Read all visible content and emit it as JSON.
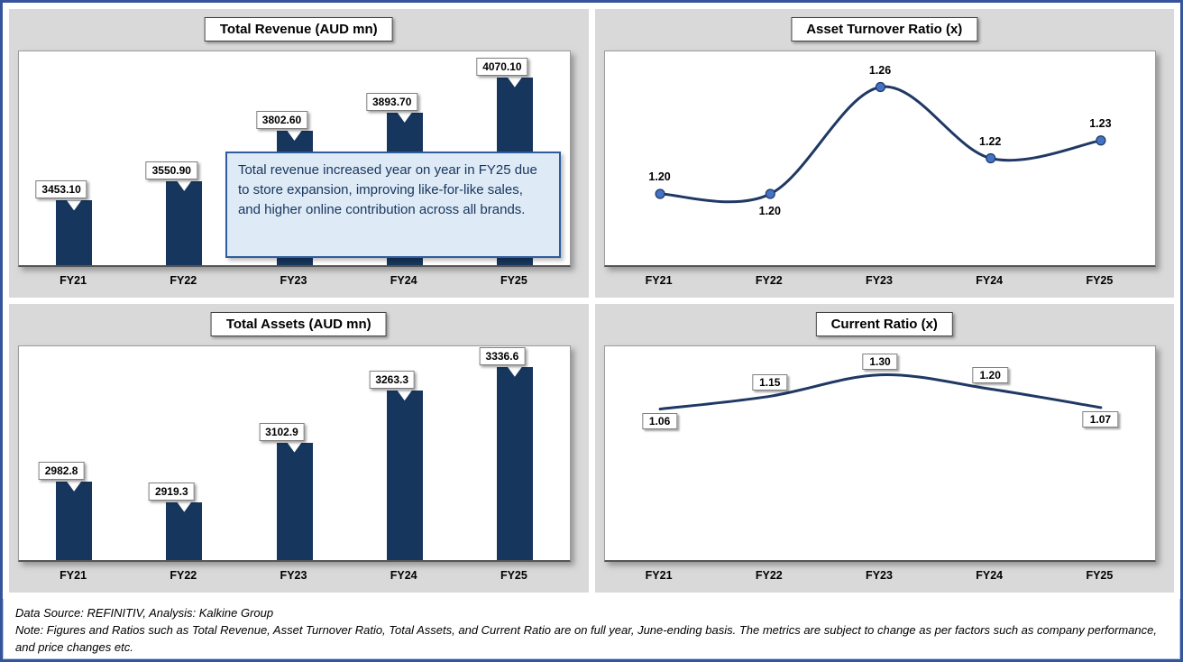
{
  "colors": {
    "bar": "#17365D",
    "line": "#1F3864",
    "marker": "#4472C4",
    "panel_bg": "#D9D9D9",
    "annotation_bg": "#DEEAF6",
    "annotation_border": "#2E5C9E"
  },
  "footer": {
    "source": "Data Source: REFINITIV, Analysis: Kalkine Group",
    "note": "Note: Figures and Ratios such as Total Revenue, Asset Turnover Ratio, Total Assets, and Current Ratio are on full year, June-ending basis. The metrics are subject to change as per factors such as company performance, and price changes etc."
  },
  "chart_data": [
    {
      "id": "total-revenue",
      "type": "bar",
      "title": "Total Revenue (AUD mn)",
      "xlabel": "",
      "ylabel": "",
      "categories": [
        "FY21",
        "FY22",
        "FY23",
        "FY24",
        "FY25"
      ],
      "values": [
        3453.1,
        3550.9,
        3802.6,
        3893.7,
        4070.1
      ],
      "labels": [
        "3453.10",
        "3550.90",
        "3802.60",
        "3893.70",
        "4070.10"
      ],
      "ylim": [
        3130,
        4200
      ],
      "grid": false,
      "legend": false,
      "annotation": "Total revenue increased year on year in FY25 due to store expansion, improving like-for-like sales, and higher online contribution across all brands."
    },
    {
      "id": "asset-turnover-ratio",
      "type": "line",
      "title": "Asset Turnover Ratio (x)",
      "xlabel": "",
      "ylabel": "",
      "categories": [
        "FY21",
        "FY22",
        "FY23",
        "FY24",
        "FY25"
      ],
      "values": [
        1.2,
        1.2,
        1.26,
        1.22,
        1.23
      ],
      "labels": [
        "1.20",
        "1.20",
        "1.26",
        "1.22",
        "1.23"
      ],
      "ylim": [
        1.16,
        1.28
      ],
      "grid": false,
      "legend": false,
      "markers": true,
      "label_style": "plain",
      "placements": [
        "above",
        "below",
        "above",
        "above",
        "above"
      ]
    },
    {
      "id": "total-assets",
      "type": "bar",
      "title": "Total Assets (AUD mn)",
      "xlabel": "",
      "ylabel": "",
      "categories": [
        "FY21",
        "FY22",
        "FY23",
        "FY24",
        "FY25"
      ],
      "values": [
        2982.8,
        2919.3,
        3102.9,
        3263.3,
        3336.6
      ],
      "labels": [
        "2982.8",
        "2919.3",
        "3102.9",
        "3263.3",
        "3336.6"
      ],
      "ylim": [
        2740,
        3400
      ],
      "grid": false,
      "legend": false
    },
    {
      "id": "current-ratio",
      "type": "line",
      "title": "Current Ratio (x)",
      "xlabel": "",
      "ylabel": "",
      "categories": [
        "FY21",
        "FY22",
        "FY23",
        "FY24",
        "FY25"
      ],
      "values": [
        1.06,
        1.15,
        1.3,
        1.2,
        1.07
      ],
      "labels": [
        "1.06",
        "1.15",
        "1.30",
        "1.20",
        "1.07"
      ],
      "ylim": [
        0,
        1.5
      ],
      "grid": false,
      "legend": false,
      "markers": false,
      "label_style": "box",
      "placements": [
        "below",
        "above",
        "above",
        "above",
        "below"
      ]
    }
  ]
}
